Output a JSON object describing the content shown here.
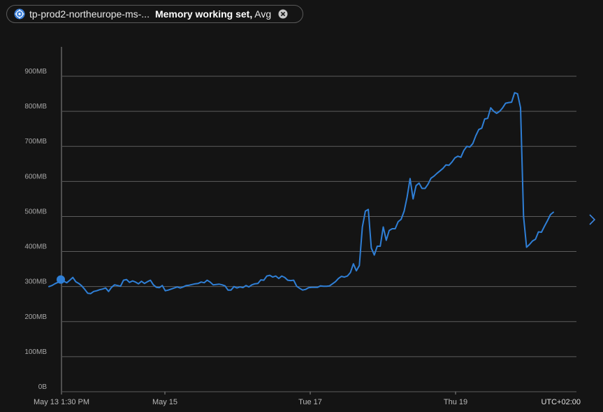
{
  "header": {
    "resource_name": "tp-prod2-northeurope-ms-...",
    "metric_name": "Memory working set,",
    "aggregation": "Avg"
  },
  "colors": {
    "background": "#141414",
    "grid": "#5c5c5c",
    "line": "#2f7fd6",
    "cursor_dot": "#2f7fd6"
  },
  "icons": {
    "resource": "kubernetes-globe-icon",
    "close": "close-circle-icon",
    "next": "chevron-right-icon"
  },
  "chart_data": {
    "type": "line",
    "title": "",
    "xlabel": "",
    "ylabel": "",
    "ylim": [
      0,
      900
    ],
    "y_unit": "MB",
    "y_ticks": [
      "0B",
      "100MB",
      "200MB",
      "300MB",
      "400MB",
      "500MB",
      "600MB",
      "700MB",
      "800MB",
      "900MB"
    ],
    "x_ticks": [
      "May 13 1:30 PM",
      "May 15",
      "Tue 17",
      "Thu 19"
    ],
    "timezone": "UTC+02:00",
    "grid": true,
    "legend": "none",
    "hover_marker": {
      "time": "May 13 1:30 PM",
      "value": 320
    },
    "series": [
      {
        "values": [
          300,
          303,
          308,
          312,
          318,
          315,
          311,
          318,
          326,
          314,
          309,
          302,
          292,
          281,
          280,
          286,
          288,
          291,
          293,
          296,
          286,
          298,
          305,
          303,
          301,
          318,
          320,
          312,
          316,
          313,
          308,
          315,
          309,
          314,
          318,
          305,
          298,
          297,
          303,
          288,
          290,
          293,
          296,
          299,
          296,
          299,
          303,
          304,
          306,
          308,
          309,
          313,
          311,
          318,
          313,
          305,
          306,
          307,
          305,
          302,
          290,
          290,
          300,
          296,
          299,
          297,
          303,
          299,
          305,
          308,
          309,
          319,
          318,
          330,
          332,
          327,
          330,
          323,
          330,
          326,
          318,
          317,
          318,
          301,
          295,
          290,
          292,
          297,
          298,
          298,
          298,
          302,
          301,
          301,
          302,
          308,
          314,
          323,
          329,
          327,
          330,
          340,
          365,
          345,
          360,
          470,
          515,
          520,
          410,
          390,
          415,
          415,
          470,
          432,
          460,
          465,
          465,
          485,
          492,
          515,
          556,
          608,
          550,
          588,
          595,
          580,
          580,
          592,
          609,
          615,
          623,
          630,
          637,
          647,
          646,
          655,
          667,
          672,
          669,
          688,
          700,
          698,
          708,
          730,
          748,
          752,
          778,
          780,
          810,
          800,
          794,
          800,
          810,
          823,
          825,
          826,
          853,
          850,
          810,
          500,
          412,
          420,
          430,
          435,
          456,
          455,
          472,
          488,
          505,
          512
        ]
      }
    ]
  }
}
